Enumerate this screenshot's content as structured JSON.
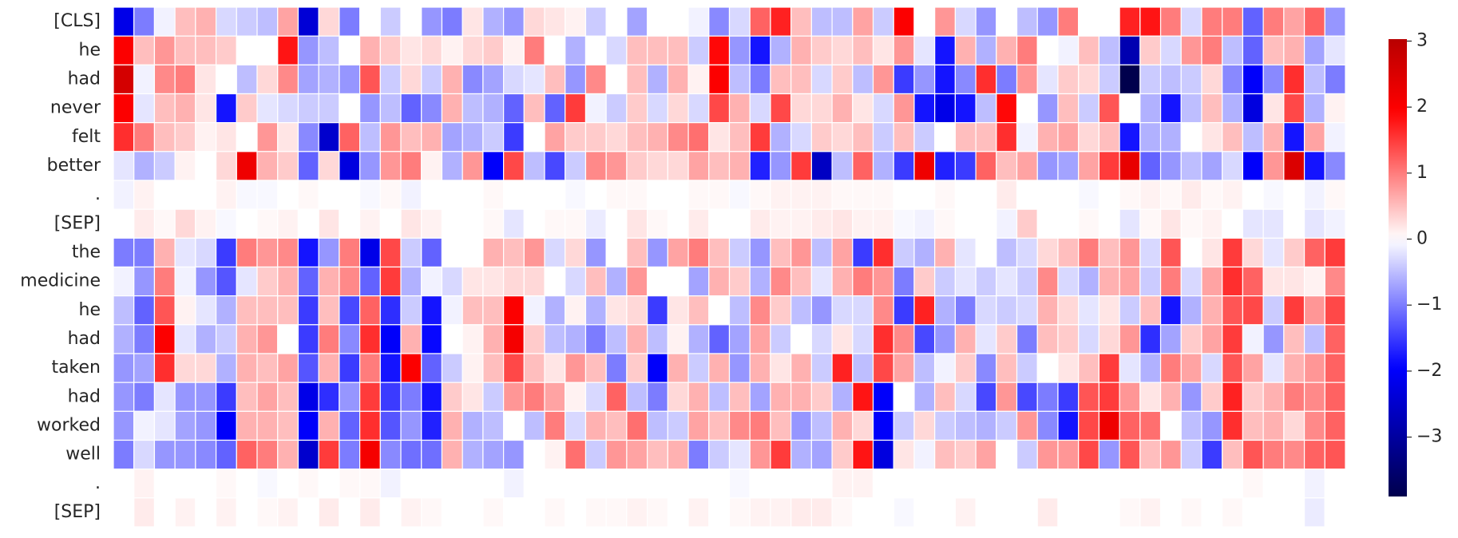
{
  "chart_data": {
    "type": "heatmap",
    "categories": [
      "[CLS]",
      "he",
      "had",
      "never",
      "felt",
      "better",
      ".",
      "[SEP]",
      "the",
      "medicine",
      "he",
      "had",
      "taken",
      "had",
      "worked",
      "well",
      ".",
      "[SEP]"
    ],
    "values": [
      [
        -2.2,
        -1.0,
        -0.1,
        0.5,
        0.6,
        -0.3,
        -0.4,
        -0.5,
        0.7,
        -2.4,
        0.3,
        -1.0,
        0.0,
        -0.4,
        0.0,
        -0.8,
        -1.0,
        0.2,
        -0.6,
        -0.8,
        0.3,
        0.2,
        0.1,
        -0.4,
        0.0,
        -0.7,
        0.0,
        0.0,
        -0.1,
        -0.9,
        -0.3,
        1.2,
        1.7,
        0.5,
        -0.5,
        -0.5,
        0.7,
        -0.4,
        2.0,
        0.0,
        0.8,
        -0.3,
        -0.8,
        0.0,
        -0.5,
        -0.8,
        1.0,
        0.0,
        0.0,
        1.7,
        1.8,
        1.0,
        -0.3,
        1.0,
        1.0,
        -1.2,
        1.0,
        0.7,
        1.2,
        -0.8
      ],
      [
        2.0,
        0.5,
        0.8,
        0.5,
        0.5,
        0.4,
        0.0,
        0.0,
        1.8,
        -0.8,
        -0.5,
        0.0,
        0.6,
        0.4,
        0.2,
        0.3,
        0.1,
        0.3,
        0.4,
        0.1,
        1.0,
        0.0,
        -0.6,
        0.0,
        -0.3,
        0.5,
        0.5,
        0.5,
        -0.4,
        1.9,
        -0.8,
        -1.8,
        -0.6,
        0.6,
        0.4,
        0.3,
        0.5,
        0.2,
        0.8,
        -0.2,
        -1.8,
        0.6,
        -0.6,
        0.6,
        1.0,
        0.0,
        -0.1,
        0.5,
        -0.5,
        -2.8,
        0.4,
        -0.3,
        0.8,
        1.0,
        -0.5,
        -1.2,
        0.5,
        0.6,
        -0.7,
        -0.2
      ],
      [
        2.6,
        -0.1,
        0.9,
        1.0,
        0.2,
        0.0,
        -0.5,
        0.3,
        0.9,
        -0.7,
        -0.6,
        -0.8,
        1.3,
        -0.4,
        0.3,
        -0.4,
        0.6,
        -0.9,
        -0.7,
        -0.3,
        -0.2,
        0.5,
        -0.8,
        0.9,
        0.0,
        0.5,
        -0.6,
        0.6,
        0.1,
        2.0,
        -0.5,
        -1.0,
        0.5,
        0.5,
        -0.3,
        0.4,
        -0.5,
        0.8,
        -1.5,
        -0.8,
        -1.8,
        -0.9,
        1.6,
        -1.0,
        0.8,
        -0.2,
        0.4,
        0.3,
        -0.4,
        -3.9,
        -0.4,
        -0.5,
        -0.4,
        0.3,
        -0.9,
        -2.0,
        -0.9,
        1.6,
        -0.5,
        -1.0
      ],
      [
        2.0,
        -0.2,
        0.5,
        0.6,
        0.2,
        -1.8,
        0.4,
        -0.2,
        -0.3,
        -0.4,
        -0.4,
        0.0,
        -0.8,
        -0.5,
        -1.2,
        -0.9,
        0.6,
        -0.5,
        -0.6,
        -1.2,
        0.5,
        -1.2,
        1.5,
        -0.1,
        -0.4,
        0.4,
        -0.3,
        0.3,
        -0.3,
        1.4,
        0.6,
        -0.3,
        1.4,
        0.3,
        0.3,
        0.6,
        0.2,
        -0.3,
        0.8,
        -1.8,
        -2.2,
        -1.8,
        -0.5,
        1.9,
        0.0,
        -0.8,
        0.5,
        -0.4,
        1.3,
        0.0,
        -0.6,
        -1.8,
        -0.5,
        0.5,
        -0.6,
        -2.3,
        0.2,
        1.4,
        -0.6,
        0.1
      ],
      [
        1.6,
        1.0,
        0.5,
        0.4,
        0.1,
        0.2,
        0.0,
        0.8,
        0.2,
        -0.9,
        -2.5,
        1.2,
        -0.5,
        0.8,
        0.5,
        0.6,
        -0.7,
        -0.6,
        -0.4,
        -1.5,
        0.0,
        0.7,
        0.4,
        0.4,
        0.3,
        0.5,
        0.6,
        0.9,
        1.1,
        0.2,
        0.5,
        1.5,
        -0.6,
        -0.3,
        0.4,
        0.3,
        0.5,
        -0.4,
        0.5,
        -0.4,
        0.0,
        0.5,
        0.5,
        1.6,
        -0.1,
        0.6,
        0.7,
        0.3,
        0.5,
        -1.8,
        -0.6,
        -0.6,
        0.0,
        0.2,
        0.5,
        -0.5,
        0.6,
        -1.8,
        0.7,
        -0.1
      ],
      [
        -0.2,
        -0.6,
        -0.4,
        0.1,
        0.0,
        0.3,
        2.2,
        0.6,
        0.4,
        -1.2,
        0.3,
        -2.3,
        -0.8,
        0.8,
        1.0,
        0.1,
        -0.6,
        0.8,
        -2.0,
        1.4,
        -0.5,
        -1.4,
        -0.4,
        0.9,
        0.8,
        0.4,
        0.3,
        0.3,
        0.7,
        0.5,
        0.6,
        -1.7,
        -0.8,
        1.5,
        -2.6,
        -0.5,
        1.2,
        -0.6,
        -1.5,
        2.2,
        -1.7,
        -1.5,
        1.2,
        0.5,
        0.7,
        -0.8,
        -0.7,
        0.7,
        1.5,
        2.3,
        -1.2,
        -0.8,
        -0.5,
        -0.7,
        -0.3,
        -2.0,
        0.8,
        2.5,
        -1.8,
        -0.9
      ],
      [
        -0.1,
        0.1,
        0.0,
        0.0,
        0.0,
        0.1,
        -0.05,
        -0.05,
        0.0,
        0.05,
        0.0,
        0.0,
        -0.05,
        0.05,
        -0.1,
        0.0,
        0.0,
        0.0,
        0.05,
        0.0,
        0.0,
        0.0,
        -0.05,
        0.0,
        0.05,
        0.05,
        0.0,
        0.0,
        0.05,
        0.05,
        -0.05,
        0.05,
        0.1,
        0.1,
        0.1,
        0.05,
        0.05,
        0.05,
        0.0,
        0.0,
        0.05,
        0.0,
        0.0,
        0.15,
        0.0,
        0.0,
        0.0,
        -0.05,
        0.0,
        0.05,
        0.1,
        0.05,
        0.15,
        0.05,
        0.1,
        0.0,
        -0.05,
        0.0,
        -0.1,
        0.05
      ],
      [
        0.0,
        0.15,
        0.05,
        0.3,
        0.1,
        -0.05,
        0.0,
        0.05,
        0.1,
        0.0,
        0.2,
        0.0,
        0.1,
        0.0,
        0.2,
        0.1,
        0.0,
        0.0,
        0.05,
        -0.2,
        0.0,
        0.05,
        0.05,
        -0.15,
        0.0,
        0.2,
        0.05,
        0.0,
        0.15,
        0.0,
        0.0,
        0.15,
        0.1,
        0.1,
        0.15,
        0.2,
        0.1,
        0.1,
        -0.05,
        -0.1,
        0.05,
        0.0,
        0.0,
        -0.1,
        0.4,
        0.0,
        0.0,
        0.05,
        0.0,
        -0.2,
        0.05,
        0.2,
        0.05,
        0.1,
        0.0,
        -0.2,
        -0.2,
        0.0,
        -0.2,
        -0.1
      ],
      [
        -1.0,
        -1.0,
        0.6,
        -0.2,
        -0.3,
        -1.5,
        1.0,
        0.8,
        0.9,
        -1.8,
        -0.8,
        1.0,
        -2.2,
        1.4,
        -0.4,
        -1.2,
        0.0,
        0.0,
        0.6,
        0.5,
        0.8,
        -0.3,
        0.3,
        -0.8,
        0.0,
        0.5,
        -0.8,
        0.7,
        1.0,
        0.5,
        -0.4,
        -0.8,
        0.5,
        0.8,
        -0.5,
        0.7,
        -1.5,
        1.6,
        -0.4,
        -0.6,
        0.6,
        -0.2,
        0.0,
        -0.5,
        -0.3,
        0.3,
        0.5,
        1.0,
        0.5,
        0.8,
        -0.3,
        1.3,
        0.0,
        0.2,
        1.5,
        0.3,
        -0.2,
        0.4,
        1.2,
        1.5
      ],
      [
        -0.1,
        -0.8,
        1.0,
        -0.1,
        -0.8,
        -1.3,
        -0.2,
        0.4,
        0.6,
        -1.2,
        0.6,
        0.9,
        -1.2,
        1.5,
        -0.6,
        -0.1,
        -0.3,
        0.2,
        0.2,
        0.3,
        0.3,
        0.0,
        -0.3,
        0.5,
        -0.6,
        0.8,
        0.0,
        0.0,
        -0.7,
        0.6,
        0.4,
        -0.6,
        0.9,
        0.5,
        -0.2,
        0.6,
        1.0,
        0.8,
        -1.0,
        0.4,
        -0.4,
        -0.2,
        -0.4,
        -0.2,
        -0.4,
        0.9,
        -0.3,
        -0.6,
        0.6,
        0.7,
        -0.4,
        1.0,
        -0.3,
        0.7,
        1.6,
        1.2,
        0.2,
        0.2,
        0.1,
        0.9
      ],
      [
        -0.5,
        -1.2,
        1.3,
        0.1,
        -0.2,
        -0.6,
        0.5,
        0.5,
        0.5,
        -1.5,
        0.5,
        -1.4,
        1.2,
        -1.6,
        -0.4,
        -1.8,
        -0.1,
        0.5,
        0.5,
        2.0,
        -0.1,
        -0.6,
        0.1,
        -0.6,
        0.2,
        0.3,
        -1.5,
        0.2,
        0.5,
        0.0,
        -0.5,
        0.9,
        0.4,
        -0.5,
        -0.8,
        -0.3,
        -0.3,
        0.9,
        -1.5,
        1.7,
        -0.6,
        -1.0,
        -0.3,
        -0.4,
        -0.3,
        0.6,
        0.3,
        -0.2,
        0.2,
        -0.4,
        0.5,
        -1.8,
        -0.6,
        0.6,
        1.3,
        1.4,
        -0.4,
        1.5,
        0.8,
        1.4
      ],
      [
        -0.6,
        -1.0,
        2.0,
        -0.2,
        -0.6,
        -0.4,
        0.6,
        0.8,
        0.0,
        -1.5,
        1.0,
        -0.9,
        1.6,
        -2.0,
        0.6,
        -1.9,
        0.0,
        0.1,
        0.6,
        2.1,
        0.4,
        -0.5,
        -0.6,
        -1.0,
        -0.5,
        0.6,
        -0.5,
        0.1,
        -0.6,
        -1.2,
        -0.7,
        0.7,
        -0.4,
        0.0,
        -0.3,
        0.2,
        -0.3,
        1.6,
        0.9,
        -1.4,
        -0.8,
        0.6,
        -0.2,
        0.4,
        -1.0,
        0.5,
        0.4,
        -0.3,
        0.3,
        0.8,
        -1.6,
        -0.7,
        0.4,
        0.7,
        1.5,
        -0.1,
        -0.8,
        0.5,
        -0.5,
        1.2
      ],
      [
        -0.8,
        -0.7,
        1.6,
        0.3,
        0.3,
        -0.6,
        0.6,
        0.5,
        0.7,
        -1.3,
        0.6,
        -1.5,
        1.0,
        -1.8,
        2.0,
        -1.2,
        -0.4,
        0.1,
        0.5,
        1.4,
        0.5,
        0.2,
        0.8,
        0.5,
        -1.0,
        0.4,
        -2.0,
        0.6,
        -0.4,
        0.6,
        -0.8,
        0.6,
        0.2,
        0.6,
        -0.4,
        1.7,
        -0.5,
        1.4,
        0.7,
        -0.5,
        -0.1,
        0.4,
        -0.9,
        0.5,
        -0.4,
        0.0,
        0.2,
        0.5,
        1.5,
        -0.2,
        -0.6,
        1.0,
        0.7,
        -0.3,
        1.3,
        0.7,
        -0.2,
        0.6,
        0.8,
        1.2
      ],
      [
        -0.8,
        -1.0,
        -0.2,
        -0.8,
        -0.8,
        -1.5,
        0.5,
        0.7,
        0.5,
        -2.2,
        -1.6,
        -0.8,
        1.5,
        -1.5,
        -1.0,
        -1.8,
        0.4,
        0.2,
        -0.4,
        0.8,
        1.0,
        0.7,
        0.1,
        -0.3,
        1.2,
        -0.5,
        -1.0,
        0.3,
        0.6,
        -0.5,
        0.5,
        -0.7,
        0.6,
        0.6,
        0.4,
        -0.6,
        1.8,
        -2.0,
        0.0,
        -0.6,
        0.5,
        -0.3,
        -1.4,
        0.8,
        -1.4,
        -1.0,
        -1.5,
        1.3,
        1.5,
        0.8,
        0.2,
        0.6,
        -0.8,
        0.4,
        1.7,
        0.4,
        0.6,
        1.0,
        0.9,
        1.2
      ],
      [
        -0.8,
        -0.1,
        -0.2,
        -0.7,
        -0.8,
        -2.0,
        0.6,
        0.6,
        0.5,
        -2.0,
        0.6,
        -1.2,
        1.6,
        -1.3,
        -0.8,
        -1.7,
        0.6,
        -0.6,
        -0.5,
        0.0,
        -0.5,
        1.0,
        -0.3,
        0.6,
        0.5,
        1.1,
        -0.5,
        -0.4,
        0.7,
        0.5,
        0.9,
        1.0,
        0.5,
        -0.8,
        -0.5,
        0.6,
        0.3,
        -2.0,
        -0.4,
        0.3,
        -0.4,
        -0.5,
        -0.6,
        -0.4,
        0.8,
        -0.9,
        -1.8,
        1.4,
        2.2,
        1.2,
        1.1,
        0.0,
        -0.5,
        -0.8,
        1.6,
        0.5,
        0.6,
        0.3,
        0.9,
        1.2
      ],
      [
        -1.0,
        -0.3,
        -0.8,
        -0.8,
        -0.9,
        -1.2,
        1.2,
        1.0,
        0.6,
        -2.5,
        1.5,
        -1.0,
        2.1,
        -0.9,
        -1.1,
        -1.1,
        0.6,
        -0.6,
        -0.7,
        -0.8,
        0.0,
        0.1,
        1.1,
        -0.4,
        0.8,
        0.7,
        0.5,
        0.6,
        -1.0,
        -0.4,
        -0.2,
        0.8,
        1.5,
        -0.6,
        -0.7,
        0.4,
        1.8,
        -2.3,
        0.2,
        -0.1,
        0.5,
        0.4,
        0.7,
        0.0,
        -0.4,
        0.8,
        0.8,
        1.4,
        -0.8,
        1.3,
        0.5,
        0.8,
        -0.4,
        -1.5,
        0.5,
        1.3,
        1.0,
        0.9,
        1.2,
        1.3
      ],
      [
        0.0,
        0.1,
        0.0,
        0.0,
        0.0,
        0.05,
        0.0,
        -0.05,
        0.0,
        0.05,
        0.0,
        0.05,
        0.05,
        -0.1,
        0.0,
        0.0,
        0.0,
        0.0,
        0.0,
        -0.1,
        0.0,
        0.0,
        0.0,
        0.0,
        0.0,
        0.0,
        0.0,
        0.0,
        0.0,
        0.0,
        -0.05,
        0.0,
        0.0,
        0.0,
        0.0,
        0.1,
        0.1,
        0.0,
        0.0,
        0.0,
        0.0,
        0.0,
        0.0,
        0.0,
        0.0,
        0.0,
        0.0,
        0.0,
        0.0,
        0.0,
        0.0,
        0.0,
        0.0,
        0.0,
        0.0,
        0.05,
        0.0,
        0.0,
        -0.1,
        0.0
      ],
      [
        0.0,
        0.15,
        0.0,
        0.1,
        0.0,
        0.1,
        0.0,
        0.05,
        0.1,
        0.0,
        0.15,
        0.0,
        0.15,
        0.0,
        0.1,
        0.05,
        0.0,
        0.0,
        0.05,
        0.0,
        0.0,
        0.05,
        0.0,
        0.05,
        0.05,
        0.1,
        0.05,
        0.0,
        0.1,
        0.0,
        0.05,
        0.1,
        0.1,
        0.15,
        0.15,
        0.05,
        0.0,
        0.0,
        -0.05,
        0.0,
        0.0,
        0.1,
        0.0,
        0.0,
        0.0,
        0.15,
        0.0,
        0.0,
        0.0,
        0.05,
        0.1,
        0.0,
        0.05,
        0.0,
        0.05,
        0.0,
        0.0,
        0.0,
        -0.15,
        0.0
      ]
    ],
    "colormap": "seismic",
    "center": 0,
    "clim": [
      -3.9,
      3.03
    ],
    "cticks": [
      {
        "value": -3,
        "label": "−3"
      },
      {
        "value": -2,
        "label": "−2"
      },
      {
        "value": -1,
        "label": "−1"
      },
      0,
      1,
      2,
      3
    ]
  }
}
